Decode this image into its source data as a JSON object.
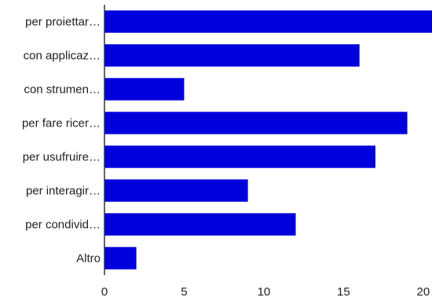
{
  "chart_data": {
    "type": "bar",
    "orientation": "horizontal",
    "categories": [
      "per proiettar…",
      "con applicaz…",
      "con strumen…",
      "per fare ricer…",
      "per usufruire…",
      "per interagir…",
      "per condivid…",
      "Altro"
    ],
    "values": [
      21,
      16,
      5,
      19,
      17,
      9,
      12,
      2
    ],
    "x_ticks": [
      "0",
      "5",
      "10",
      "15",
      "20"
    ],
    "xlim": [
      0,
      20.5
    ],
    "bar_color": "#0000dd",
    "grid": false,
    "legend": "none",
    "title": "",
    "xlabel": "",
    "ylabel": ""
  }
}
